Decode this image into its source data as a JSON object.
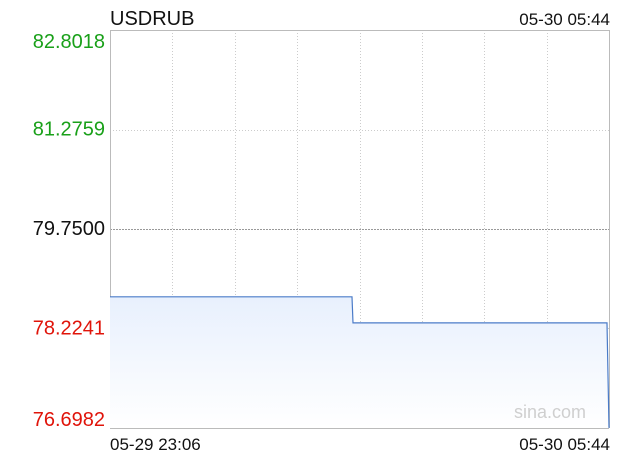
{
  "header": {
    "symbol": "USDRUB",
    "datetime": "05-30 05:44"
  },
  "footer": {
    "x_start_label": "05-29 23:06",
    "x_end_label": "05-30 05:44"
  },
  "watermark": "sina.com",
  "colors": {
    "line": "#4a7bc8",
    "fill_top": "#e8f0fd",
    "fill_bottom": "#ffffff",
    "up": "#19a019",
    "down": "#e0140a",
    "neutral": "#111111",
    "grid": "#cccccc",
    "axis": "#bbbbbb",
    "watermark": "#cfcfcf"
  },
  "chart_data": {
    "type": "area",
    "title": "USDRUB",
    "xlabel": "",
    "ylabel": "",
    "ylim": [
      76.6982,
      82.8018
    ],
    "yticks": [
      {
        "value": 82.8018,
        "label": "82.8018",
        "tone": "up"
      },
      {
        "value": 81.2759,
        "label": "81.2759",
        "tone": "up"
      },
      {
        "value": 79.75,
        "label": "79.7500",
        "tone": "neutral"
      },
      {
        "value": 78.2241,
        "label": "78.2241",
        "tone": "down"
      },
      {
        "value": 76.6982,
        "label": "76.6982",
        "tone": "down"
      }
    ],
    "xticks": [
      "05-29 23:06",
      "05-30 05:44"
    ],
    "reference": 79.75,
    "grid": true,
    "series": [
      {
        "name": "USDRUB",
        "points": [
          {
            "t": 0.0,
            "y": 78.71
          },
          {
            "t": 0.485,
            "y": 78.71
          },
          {
            "t": 0.487,
            "y": 78.31
          },
          {
            "t": 0.996,
            "y": 78.31
          },
          {
            "t": 1.0,
            "y": 76.7
          }
        ]
      }
    ]
  }
}
